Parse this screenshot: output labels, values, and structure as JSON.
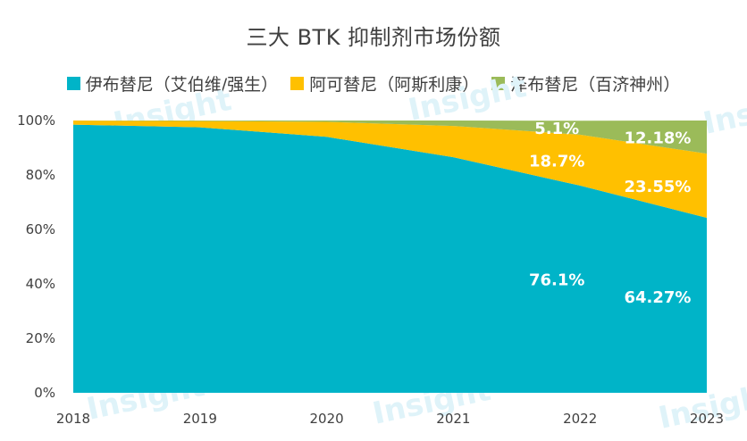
{
  "chart_data": {
    "type": "area",
    "stacked": true,
    "title": "三大 BTK 抑制剂市场份额",
    "x": [
      "2018",
      "2019",
      "2020",
      "2021",
      "2022",
      "2023"
    ],
    "series": [
      {
        "name": "伊布替尼（艾伯维/强生）",
        "color": "#00B4C8",
        "values": [
          98.5,
          97.5,
          94.0,
          86.5,
          76.1,
          64.27
        ]
      },
      {
        "name": "阿可替尼（阿斯利康）",
        "color": "#FFC000",
        "values": [
          1.5,
          2.3,
          5.5,
          11.5,
          18.7,
          23.55
        ]
      },
      {
        "name": "泽布替尼（百济神州）",
        "color": "#9BBB59",
        "values": [
          0.0,
          0.2,
          0.5,
          2.0,
          5.1,
          12.18
        ]
      }
    ],
    "yticks": [
      "0%",
      "20%",
      "40%",
      "60%",
      "80%",
      "100%"
    ],
    "ylim": [
      0,
      100
    ],
    "data_labels": [
      {
        "series": 0,
        "x": "2022",
        "text": "76.1%"
      },
      {
        "series": 0,
        "x": "2023",
        "text": "64.27%"
      },
      {
        "series": 1,
        "x": "2022",
        "text": "18.7%"
      },
      {
        "series": 1,
        "x": "2023",
        "text": "23.55%"
      },
      {
        "series": 2,
        "x": "2022",
        "text": "5.1%"
      },
      {
        "series": 2,
        "x": "2023",
        "text": "12.18%"
      }
    ],
    "legend_position": "top",
    "grid": false
  },
  "watermark": "Insight"
}
